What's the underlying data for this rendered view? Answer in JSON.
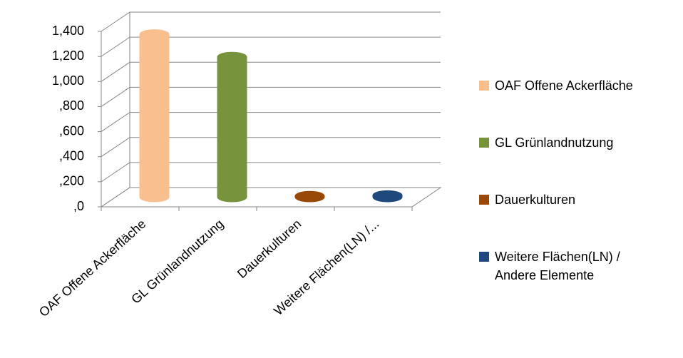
{
  "chart_data": {
    "type": "cylinder",
    "categories": [
      "OAF Offene Ackerfläche",
      "GL Grünlandnutzung",
      "Dauerkulturen",
      "Weitere Flächen(LN) /..."
    ],
    "legend_labels": [
      "OAF Offene Ackerfläche",
      "GL Grünlandnutzung",
      "Dauerkulturen",
      "Weitere Flächen(LN) / Andere Elemente"
    ],
    "values": [
      1300,
      1120,
      10,
      15
    ],
    "colors": [
      "#f9bf8f",
      "#77933c",
      "#984807",
      "#1f497d"
    ],
    "ylim": [
      0,
      1400
    ],
    "yticks": [
      {
        "value": 0,
        "label": ",0"
      },
      {
        "value": 200,
        "label": ",200"
      },
      {
        "value": 400,
        "label": ",400"
      },
      {
        "value": 600,
        "label": ",600"
      },
      {
        "value": 800,
        "label": ",800"
      },
      {
        "value": 1000,
        "label": "1,000"
      },
      {
        "value": 1200,
        "label": "1,200"
      },
      {
        "value": 1400,
        "label": "1,400"
      }
    ],
    "grid": true,
    "legend": "right"
  }
}
